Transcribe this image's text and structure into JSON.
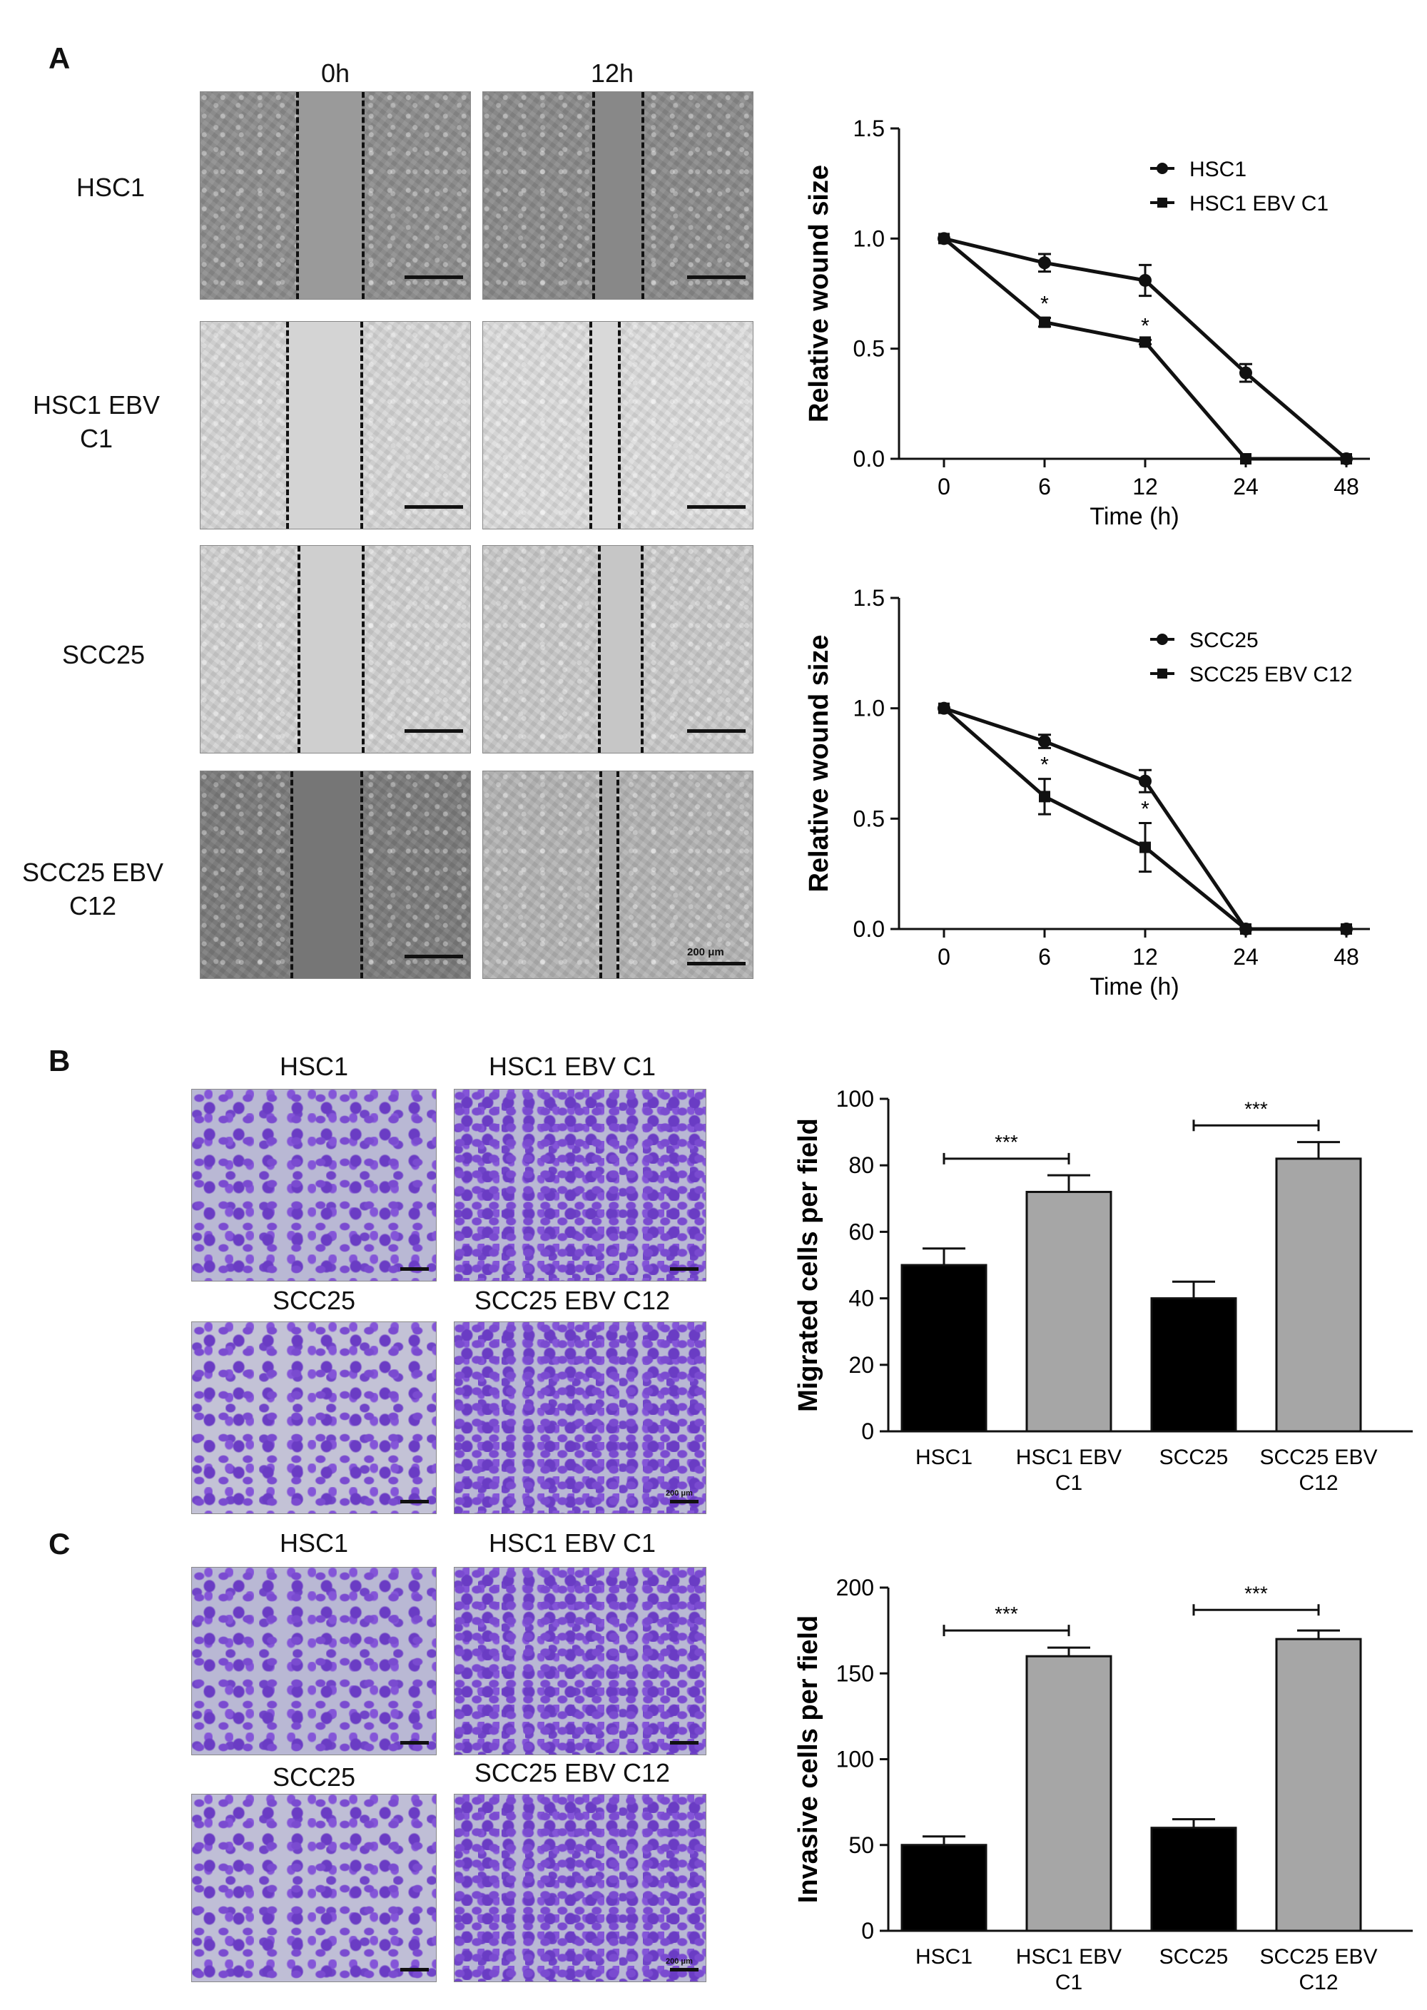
{
  "panels": {
    "a": "A",
    "b": "B",
    "c": "C"
  },
  "wound_images": {
    "col_0h": "0h",
    "col_12h": "12h",
    "rows": [
      "HSC1",
      "HSC1 EBV C1",
      "SCC25",
      "SCC25 EBV C12"
    ],
    "row_lines": [
      [
        "HSC1"
      ],
      [
        "HSC1 EBV",
        "C1"
      ],
      [
        "SCC25"
      ],
      [
        "SCC25 EBV",
        "C12"
      ]
    ],
    "scale_label": "200 μm"
  },
  "transwell_b": {
    "labels": [
      "HSC1",
      "HSC1 EBV C1",
      "SCC25",
      "SCC25 EBV C12"
    ],
    "scale_label": "200 μm"
  },
  "transwell_c": {
    "labels": [
      "HSC1",
      "HSC1 EBV C1",
      "SCC25",
      "SCC25 EBV C12"
    ],
    "scale_label": "200 μm"
  },
  "chart_data": [
    {
      "id": "wound-hsc1",
      "type": "line",
      "x_categories": [
        "0",
        "6",
        "12",
        "24",
        "48"
      ],
      "xlabel": "Time (h)",
      "ylabel": "Relative wound size",
      "ylim": [
        0,
        1.5
      ],
      "yticks": [
        "0.0",
        "0.5",
        "1.0",
        "1.5"
      ],
      "series": [
        {
          "name": "HSC1",
          "marker": "circle",
          "values": [
            1.0,
            0.89,
            0.81,
            0.39,
            0.0
          ],
          "errors": [
            0.0,
            0.04,
            0.07,
            0.04,
            0.0
          ],
          "sig": [
            "",
            "",
            "",
            "",
            ""
          ]
        },
        {
          "name": "HSC1 EBV C1",
          "marker": "square",
          "values": [
            1.0,
            0.62,
            0.53,
            0.0,
            0.0
          ],
          "errors": [
            0.0,
            0.02,
            0.01,
            0.0,
            0.0
          ],
          "sig": [
            "",
            "*",
            "*",
            "",
            ""
          ]
        }
      ]
    },
    {
      "id": "wound-scc25",
      "type": "line",
      "x_categories": [
        "0",
        "6",
        "12",
        "24",
        "48"
      ],
      "xlabel": "Time (h)",
      "ylabel": "Relative wound size",
      "ylim": [
        0,
        1.5
      ],
      "yticks": [
        "0.0",
        "0.5",
        "1.0",
        "1.5"
      ],
      "series": [
        {
          "name": "SCC25",
          "marker": "circle",
          "values": [
            1.0,
            0.85,
            0.67,
            0.0,
            0.0
          ],
          "errors": [
            0.0,
            0.03,
            0.05,
            0.0,
            0.0
          ],
          "sig": [
            "",
            "",
            "",
            "",
            ""
          ]
        },
        {
          "name": "SCC25 EBV C12",
          "marker": "square",
          "values": [
            1.0,
            0.6,
            0.37,
            0.0,
            0.0
          ],
          "errors": [
            0.0,
            0.08,
            0.11,
            0.0,
            0.0
          ],
          "sig": [
            "",
            "*",
            "*",
            "",
            ""
          ]
        }
      ]
    },
    {
      "id": "migration",
      "type": "bar",
      "categories": [
        "HSC1",
        "HSC1 EBV C1",
        "SCC25",
        "SCC25 EBV C12"
      ],
      "category_lines": [
        [
          "HSC1"
        ],
        [
          "HSC1 EBV",
          "C1"
        ],
        [
          "SCC25"
        ],
        [
          "SCC25 EBV",
          "C12"
        ]
      ],
      "values": [
        50,
        72,
        40,
        82
      ],
      "errors": [
        5,
        5,
        5,
        5
      ],
      "colors": [
        "#000000",
        "#a6a6a6",
        "#000000",
        "#a6a6a6"
      ],
      "ylabel": "Migrated cells per field",
      "ylim": [
        0,
        100
      ],
      "yticks": [
        "0",
        "20",
        "40",
        "60",
        "80",
        "100"
      ],
      "brackets": [
        {
          "from": 0,
          "to": 1,
          "value": 82,
          "label": "***"
        },
        {
          "from": 2,
          "to": 3,
          "value": 92,
          "label": "***"
        }
      ]
    },
    {
      "id": "invasion",
      "type": "bar",
      "categories": [
        "HSC1",
        "HSC1 EBV C1",
        "SCC25",
        "SCC25 EBV C12"
      ],
      "category_lines": [
        [
          "HSC1"
        ],
        [
          "HSC1 EBV",
          "C1"
        ],
        [
          "SCC25"
        ],
        [
          "SCC25 EBV",
          "C12"
        ]
      ],
      "values": [
        50,
        160,
        60,
        170
      ],
      "errors": [
        5,
        5,
        5,
        5
      ],
      "colors": [
        "#000000",
        "#a6a6a6",
        "#000000",
        "#a6a6a6"
      ],
      "ylabel": "Invasive cells per field",
      "ylim": [
        0,
        200
      ],
      "yticks": [
        "0",
        "50",
        "100",
        "150",
        "200"
      ],
      "brackets": [
        {
          "from": 0,
          "to": 1,
          "value": 175,
          "label": "***"
        },
        {
          "from": 2,
          "to": 3,
          "value": 187,
          "label": "***"
        }
      ]
    }
  ]
}
